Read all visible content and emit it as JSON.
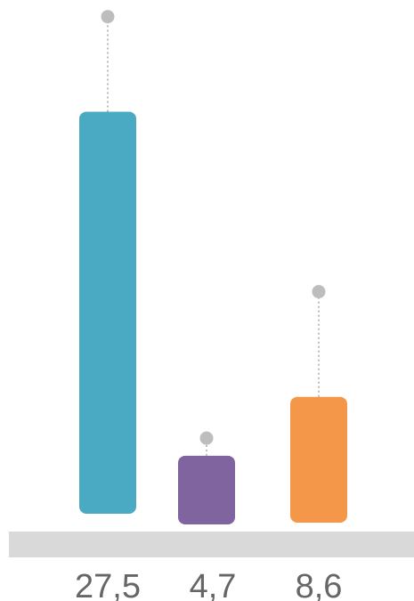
{
  "chart_data": {
    "type": "bar",
    "title": "",
    "xlabel": "",
    "ylabel": "",
    "ylim": [
      0,
      30
    ],
    "grid": false,
    "legend": "none",
    "series": [
      {
        "values": [
          27.5,
          4.7,
          8.6
        ],
        "errors": [
          6.5,
          1.2,
          7.2
        ]
      }
    ],
    "values": [
      27.5,
      4.7,
      8.6
    ],
    "labels": [
      "27,5",
      "4,7",
      "8,6"
    ],
    "colors": [
      "#4aaac4",
      "#7f64a0",
      "#f59748"
    ],
    "baseline_color": "#d9d9d9",
    "errorbar_color": "#bdbdbd",
    "label_color": "#666666"
  }
}
